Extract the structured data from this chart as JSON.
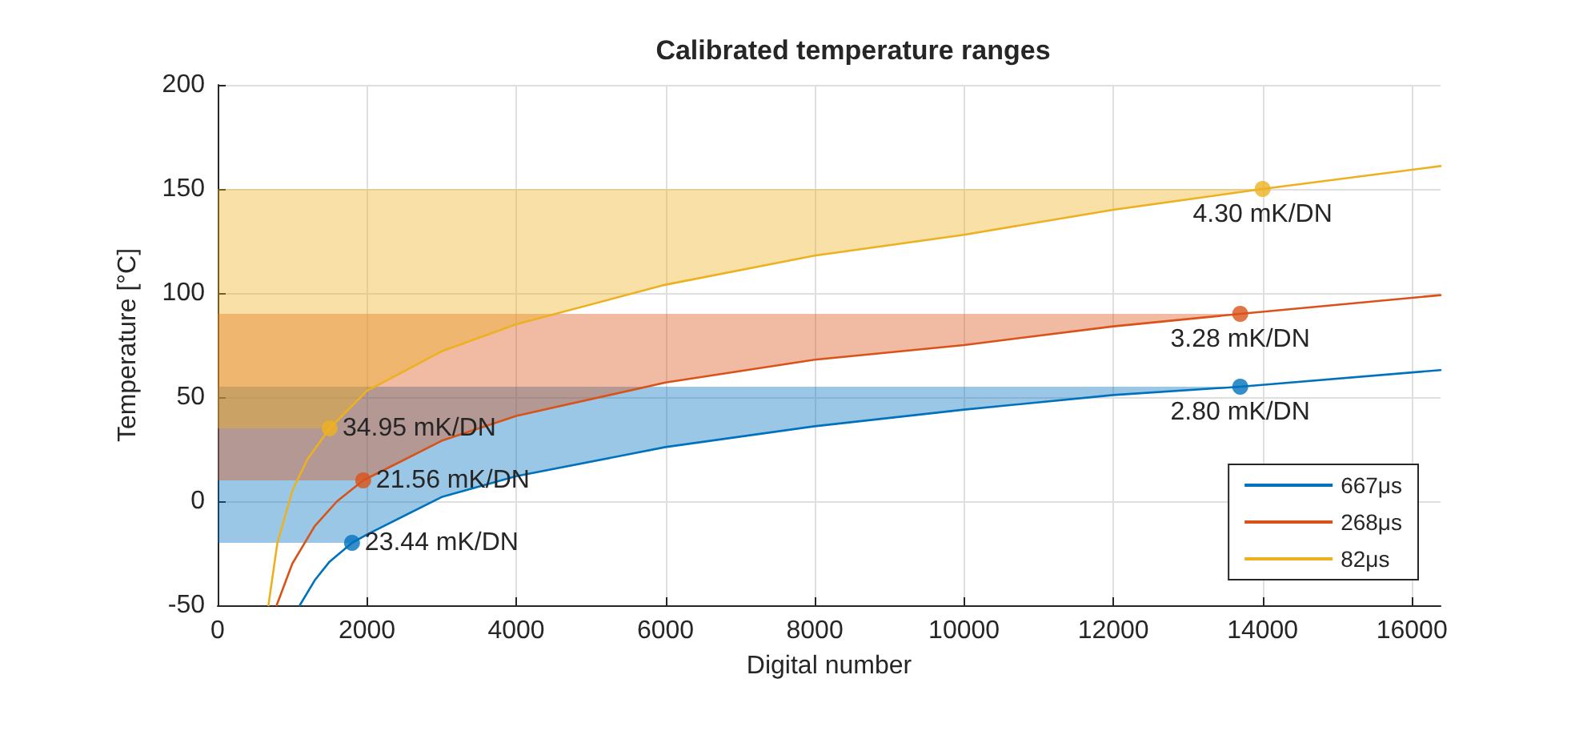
{
  "chart_data": {
    "type": "line",
    "title": "Calibrated temperature ranges",
    "xlabel": "Digital number",
    "ylabel": "Temperature [°C]",
    "xlim": [
      0,
      16384
    ],
    "xticks": [
      0,
      2000,
      4000,
      6000,
      8000,
      10000,
      12000,
      14000,
      16000
    ],
    "ylim": [
      -50,
      200
    ],
    "yticks": [
      -50,
      0,
      50,
      100,
      150,
      200
    ],
    "grid": true,
    "legend": "bottom right",
    "line_style": "solid",
    "series": [
      {
        "name": "667μs",
        "color": "#0072bd",
        "x": [
          0,
          1100,
          1300,
          1500,
          1800,
          2000,
          3000,
          4000,
          6000,
          8000,
          10000,
          12000,
          13700,
          16384
        ],
        "values": [
          null,
          -50,
          -38,
          -29,
          -20,
          -16,
          2,
          12,
          26,
          36,
          44,
          51,
          55,
          63
        ],
        "lower": [
          -20,
          -20,
          -20,
          -20,
          -20,
          -16,
          2,
          12,
          26,
          36,
          44,
          51,
          55,
          null
        ],
        "upper": [
          55,
          55,
          55,
          55,
          55,
          55,
          55,
          55,
          55,
          55,
          55,
          55,
          55,
          null
        ]
      },
      {
        "name": "268μs",
        "color": "#d95319",
        "x": [
          0,
          790,
          1000,
          1300,
          1600,
          1950,
          3000,
          4000,
          6000,
          8000,
          10000,
          12000,
          13700,
          16384
        ],
        "values": [
          null,
          -50,
          -30,
          -12,
          0,
          10,
          29,
          41,
          57,
          68,
          75,
          84,
          90,
          99
        ],
        "lower": [
          10,
          10,
          10,
          10,
          10,
          10,
          29,
          41,
          57,
          68,
          75,
          84,
          90,
          null
        ],
        "upper": [
          90,
          90,
          90,
          90,
          90,
          90,
          90,
          90,
          90,
          90,
          90,
          90,
          90,
          null
        ]
      },
      {
        "name": "82μs",
        "color": "#edb120",
        "x": [
          0,
          680,
          800,
          1000,
          1200,
          1500,
          2000,
          3000,
          4000,
          6000,
          8000,
          10000,
          12000,
          14000,
          16384
        ],
        "values": [
          null,
          -50,
          -20,
          5,
          20,
          35,
          53,
          72,
          85,
          104,
          118,
          128,
          140,
          150,
          161
        ],
        "lower": [
          35,
          35,
          35,
          35,
          35,
          35,
          53,
          72,
          85,
          104,
          118,
          128,
          140,
          150,
          null
        ],
        "upper": [
          150,
          150,
          150,
          150,
          150,
          150,
          150,
          150,
          150,
          150,
          150,
          150,
          150,
          150,
          null
        ]
      },
      {
        "type": "scatter",
        "marker": "circle",
        "color": "#0072bd",
        "x": [
          1800,
          13700
        ],
        "values": [
          -20,
          55
        ]
      },
      {
        "type": "scatter",
        "marker": "circle",
        "color": "#d95319",
        "x": [
          1950,
          13700
        ],
        "values": [
          10,
          90
        ]
      },
      {
        "type": "scatter",
        "marker": "circle",
        "color": "#edb120",
        "x": [
          1500,
          14000
        ],
        "values": [
          35,
          150
        ]
      }
    ],
    "annotations": [
      {
        "text": "23.44 mK/DN",
        "x": 1800,
        "y": -20
      },
      {
        "text": "2.80 mK/DN",
        "x": 13700,
        "y": 55
      },
      {
        "text": "21.56 mK/DN",
        "x": 1950,
        "y": 10
      },
      {
        "text": "3.28 mK/DN",
        "x": 13700,
        "y": 90
      },
      {
        "text": "34.95 mK/DN",
        "x": 1500,
        "y": 35
      },
      {
        "text": "4.30 mK/DN",
        "x": 14000,
        "y": 150
      }
    ]
  }
}
